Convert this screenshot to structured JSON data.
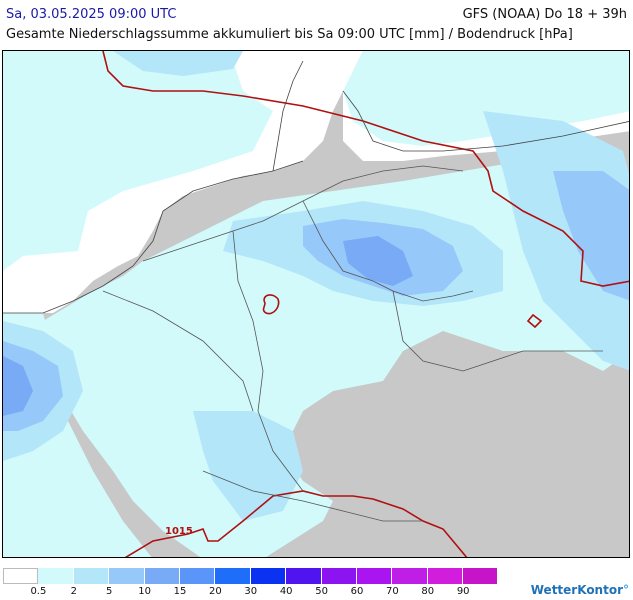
{
  "header": {
    "datetime": "Sa, 03.05.2025 09:00 UTC",
    "model_run": "GFS (NOAA) Do 18 + 39h",
    "description": "Gesamte Niederschlagssumme akkumuliert bis Sa 09:00 UTC [mm] / Bodendruck [hPa]"
  },
  "map": {
    "isobar_label": "1015",
    "isobar_color": "#b01010",
    "land_color": "#c8c8c8",
    "sea_color": "#ffffff"
  },
  "legend": {
    "colors": [
      "#ffffff",
      "#d2fafa",
      "#b4e6fa",
      "#96c8fa",
      "#78aaf5",
      "#5a96fa",
      "#1e6efa",
      "#0a32f0",
      "#5014f0",
      "#8c14f0",
      "#aa14f0",
      "#be1ee6",
      "#d21edc",
      "#c814c8"
    ],
    "ticks": [
      "0.5",
      "2",
      "5",
      "10",
      "15",
      "20",
      "30",
      "40",
      "50",
      "60",
      "70",
      "80",
      "90"
    ]
  },
  "brand": {
    "name": "WetterKontor",
    "mark": "°"
  }
}
